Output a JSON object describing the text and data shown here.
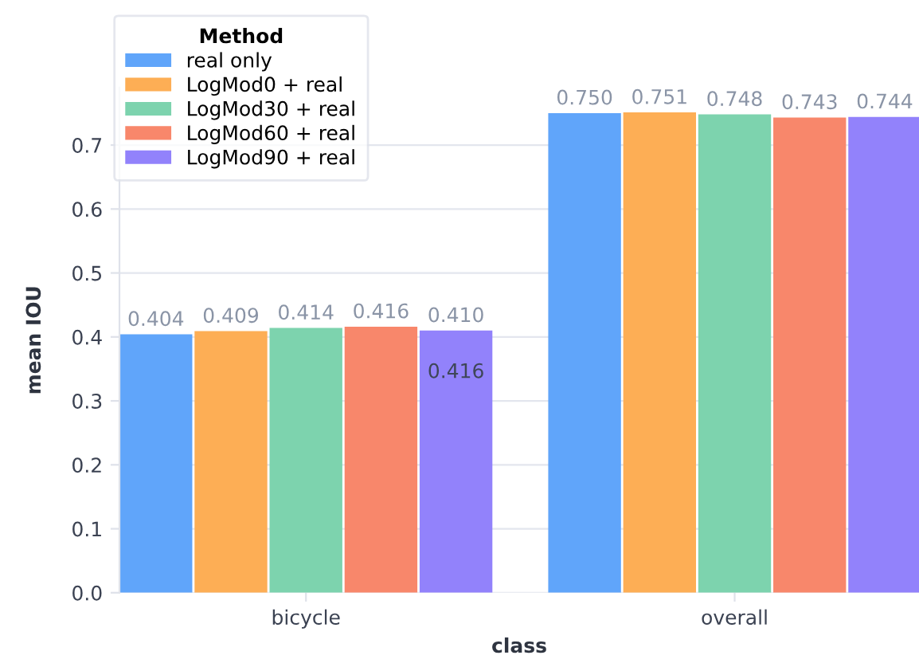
{
  "chart_data": {
    "type": "bar",
    "xlabel": "class",
    "ylabel": "mean IOU",
    "legend_title": "Method",
    "legend": "top left",
    "grid": "y",
    "categories": [
      "bicycle",
      "overall"
    ],
    "ylim": [
      0,
      0.79
    ],
    "yticks": [
      {
        "value": 0,
        "label": "0.0"
      },
      0.1,
      0.2,
      0.3,
      0.4,
      0.5,
      0.6,
      0.7
    ],
    "series": [
      {
        "name": "real only",
        "color": "#60a5fa",
        "values": [
          0.404,
          0.75
        ],
        "value_labels": [
          "0.404",
          "0.750"
        ]
      },
      {
        "name": "LogMod0 + real",
        "color": "#fdae55",
        "values": [
          0.409,
          0.751
        ],
        "value_labels": [
          "0.409",
          "0.751"
        ]
      },
      {
        "name": "LogMod30 + real",
        "color": "#7dd3ae",
        "values": [
          0.414,
          0.748
        ],
        "value_labels": [
          "0.414",
          "0.748"
        ]
      },
      {
        "name": "LogMod60 + real",
        "color": "#f8876b",
        "values": [
          0.416,
          0.743
        ],
        "value_labels": [
          "0.416",
          "0.743"
        ]
      },
      {
        "name": "LogMod90 + real",
        "color": "#9282fb",
        "values": [
          0.41,
          0.744
        ],
        "value_labels": [
          "0.410",
          "0.744"
        ]
      }
    ],
    "annotations": [
      "0.416"
    ]
  }
}
